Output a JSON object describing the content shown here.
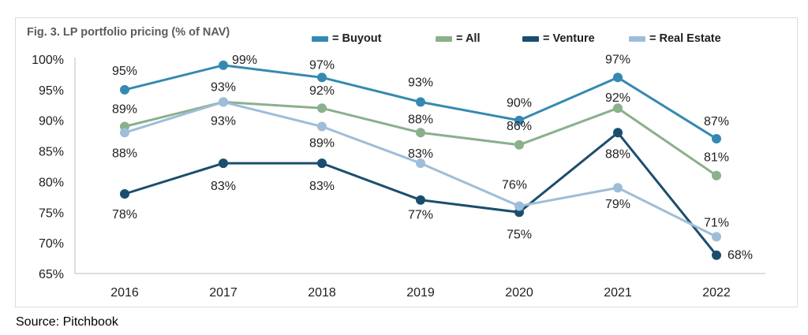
{
  "chart_data": {
    "type": "line",
    "title": "Fig. 3. LP portfolio pricing (% of NAV)",
    "source": "Source: Pitchbook",
    "categories": [
      "2016",
      "2017",
      "2018",
      "2019",
      "2020",
      "2021",
      "2022"
    ],
    "ylim": [
      65,
      100
    ],
    "yticks": [
      "65%",
      "70%",
      "75%",
      "80%",
      "85%",
      "90%",
      "95%",
      "100%"
    ],
    "grid": false,
    "legend_position": "top",
    "series": [
      {
        "name": "Buyout",
        "legend_label": "= Buyout",
        "color": "#3589b1",
        "values": [
          95,
          99,
          97,
          93,
          90,
          97,
          87
        ],
        "labels": [
          "95%",
          "99%",
          "97%",
          "93%",
          "90%",
          "97%",
          "87%"
        ]
      },
      {
        "name": "All",
        "legend_label": "= All",
        "color": "#8ab08c",
        "values": [
          89,
          93,
          92,
          88,
          86,
          92,
          81
        ],
        "labels": [
          "89%",
          "93%",
          "92%",
          "88%",
          "86%",
          "92%",
          "81%"
        ]
      },
      {
        "name": "Venture",
        "legend_label": "= Venture",
        "color": "#1a4e6e",
        "values": [
          78,
          83,
          83,
          77,
          75,
          88,
          68
        ],
        "labels": [
          "78%",
          "83%",
          "83%",
          "77%",
          "75%",
          "88%",
          "68%"
        ]
      },
      {
        "name": "Real Estate",
        "legend_label": "= Real Estate",
        "color": "#9ebdd8",
        "values": [
          88,
          93,
          89,
          83,
          76,
          79,
          71
        ],
        "labels": [
          "88%",
          "93%",
          "89%",
          "83%",
          "76%",
          "79%",
          "71%"
        ]
      }
    ]
  }
}
